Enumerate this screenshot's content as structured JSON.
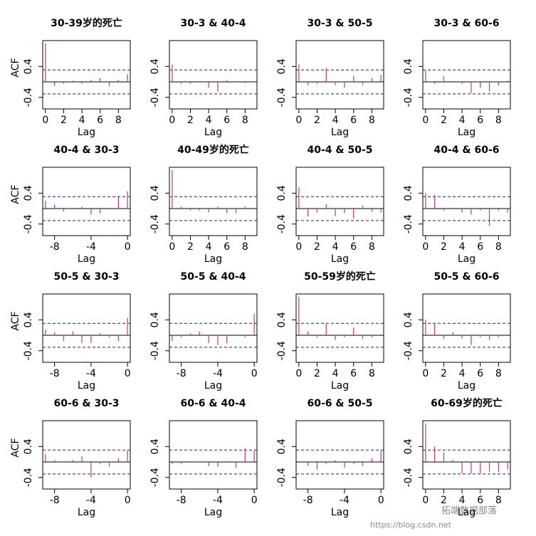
{
  "chart_data": [
    {
      "type": "acf",
      "title": "30-39岁的死亡",
      "ylabel": "ACF",
      "xlabel": "Lag",
      "x": [
        0,
        1,
        2,
        3,
        4,
        5,
        6,
        7,
        8,
        9
      ],
      "values": [
        1.0,
        -0.1,
        -0.05,
        0.03,
        -0.05,
        0.05,
        0.1,
        -0.12,
        0.05,
        0.2
      ],
      "xlim": [
        -0.3,
        9.3
      ],
      "ylim": [
        -0.7,
        1.07
      ],
      "xticks": [
        0,
        2,
        4,
        6,
        8
      ],
      "yticks": [
        -0.4,
        0.4
      ],
      "conf_limit": 0.31,
      "color": "#cc3366",
      "conf_color": "#1a1a8c"
    },
    {
      "type": "acf",
      "title": "30-3 & 40-4",
      "xlabel": "Lag",
      "x": [
        0,
        1,
        2,
        3,
        4,
        5,
        6,
        7,
        8,
        9
      ],
      "values": [
        0.45,
        -0.05,
        -0.05,
        0.02,
        -0.15,
        -0.25,
        0.05,
        0.02,
        -0.03,
        0.02
      ],
      "xlim": [
        -0.3,
        9.3
      ],
      "ylim": [
        -0.7,
        1.07
      ],
      "xticks": [
        0,
        2,
        4,
        6,
        8
      ],
      "yticks": [
        -0.4,
        0.4
      ],
      "conf_limit": 0.31,
      "color": "#cc3366",
      "conf_color": "#1a1a8c"
    },
    {
      "type": "acf",
      "title": "30-3 & 50-5",
      "xlabel": "Lag",
      "x": [
        0,
        1,
        2,
        3,
        4,
        5,
        6,
        7,
        8,
        9
      ],
      "values": [
        0.45,
        -0.08,
        -0.05,
        0.35,
        -0.08,
        -0.15,
        0.15,
        -0.08,
        0.1,
        0.18
      ],
      "xlim": [
        -0.3,
        9.3
      ],
      "ylim": [
        -0.7,
        1.07
      ],
      "xticks": [
        0,
        2,
        4,
        6,
        8
      ],
      "yticks": [
        -0.4,
        0.4
      ],
      "conf_limit": 0.31,
      "color": "#cc3366",
      "conf_color": "#1a1a8c"
    },
    {
      "type": "acf",
      "title": "30-3 & 60-6",
      "xlabel": "Lag",
      "x": [
        0,
        1,
        2,
        3,
        4,
        5,
        6,
        7,
        8,
        9
      ],
      "values": [
        0.3,
        -0.05,
        0.15,
        0.02,
        -0.05,
        -0.3,
        -0.15,
        -0.25,
        -0.1,
        0.03
      ],
      "xlim": [
        -0.3,
        9.3
      ],
      "ylim": [
        -0.7,
        1.07
      ],
      "xticks": [
        0,
        2,
        4,
        6,
        8
      ],
      "yticks": [
        -0.4,
        0.4
      ],
      "conf_limit": 0.31,
      "color": "#cc3366",
      "conf_color": "#1a1a8c"
    },
    {
      "type": "acf",
      "title": "40-4 & 30-3",
      "ylabel": "ACF",
      "xlabel": "Lag",
      "x": [
        -9,
        -8,
        -7,
        -6,
        -5,
        -4,
        -3,
        -2,
        -1,
        0
      ],
      "values": [
        0.2,
        0.1,
        -0.08,
        0.02,
        0.05,
        -0.15,
        -0.12,
        0.02,
        0.3,
        0.45
      ],
      "xlim": [
        -9.3,
        0.3
      ],
      "ylim": [
        -0.7,
        1.07
      ],
      "xticks": [
        -8,
        -4,
        0
      ],
      "yticks": [
        -0.4,
        0.4
      ],
      "conf_limit": 0.31,
      "color": "#cc3366",
      "conf_color": "#1a1a8c"
    },
    {
      "type": "acf",
      "title": "40-49岁的死亡",
      "xlabel": "Lag",
      "x": [
        0,
        1,
        2,
        3,
        4,
        5,
        6,
        7,
        8,
        9
      ],
      "values": [
        1.0,
        0.05,
        -0.05,
        -0.05,
        -0.1,
        0.05,
        -0.12,
        -0.12,
        0.05,
        0.02
      ],
      "xlim": [
        -0.3,
        9.3
      ],
      "ylim": [
        -0.7,
        1.07
      ],
      "xticks": [
        0,
        2,
        4,
        6,
        8
      ],
      "yticks": [
        -0.4,
        0.4
      ],
      "conf_limit": 0.31,
      "color": "#cc3366",
      "conf_color": "#1a1a8c"
    },
    {
      "type": "acf",
      "title": "40-4 & 50-5",
      "xlabel": "Lag",
      "x": [
        0,
        1,
        2,
        3,
        4,
        5,
        6,
        7,
        8,
        9
      ],
      "values": [
        0.55,
        -0.2,
        -0.1,
        0.12,
        -0.2,
        -0.12,
        -0.25,
        0.08,
        -0.08,
        -0.1
      ],
      "xlim": [
        -0.3,
        9.3
      ],
      "ylim": [
        -0.7,
        1.07
      ],
      "xticks": [
        0,
        2,
        4,
        6,
        8
      ],
      "yticks": [
        -0.4,
        0.4
      ],
      "conf_limit": 0.31,
      "color": "#cc3366",
      "conf_color": "#1a1a8c"
    },
    {
      "type": "acf",
      "title": "40-4 & 60-6",
      "xlabel": "Lag",
      "x": [
        0,
        1,
        2,
        3,
        4,
        5,
        6,
        7,
        8,
        9
      ],
      "values": [
        0.4,
        0.35,
        -0.05,
        0.02,
        -0.1,
        -0.15,
        -0.05,
        -0.45,
        -0.05,
        -0.1
      ],
      "xlim": [
        -0.3,
        9.3
      ],
      "ylim": [
        -0.7,
        1.07
      ],
      "xticks": [
        0,
        2,
        4,
        6,
        8
      ],
      "yticks": [
        -0.4,
        0.4
      ],
      "conf_limit": 0.31,
      "color": "#cc3366",
      "conf_color": "#1a1a8c"
    },
    {
      "type": "acf",
      "title": "50-5 & 30-3",
      "ylabel": "ACF",
      "xlabel": "Lag",
      "x": [
        -9,
        -8,
        -7,
        -6,
        -5,
        -4,
        -3,
        -2,
        -1,
        0
      ],
      "values": [
        0.15,
        0.08,
        -0.15,
        0.1,
        -0.2,
        -0.2,
        0.05,
        -0.05,
        -0.15,
        0.45
      ],
      "xlim": [
        -9.3,
        0.3
      ],
      "ylim": [
        -0.7,
        1.07
      ],
      "xticks": [
        -8,
        -4,
        0
      ],
      "yticks": [
        -0.4,
        0.4
      ],
      "conf_limit": 0.31,
      "color": "#cc3366",
      "conf_color": "#1a1a8c"
    },
    {
      "type": "acf",
      "title": "50-5 & 40-4",
      "xlabel": "Lag",
      "x": [
        -9,
        -8,
        -7,
        -6,
        -5,
        -4,
        -3,
        -2,
        -1,
        0
      ],
      "values": [
        -0.15,
        -0.05,
        0.05,
        0.1,
        -0.2,
        -0.25,
        -0.2,
        0.02,
        -0.05,
        0.55
      ],
      "xlim": [
        -9.3,
        0.3
      ],
      "ylim": [
        -0.7,
        1.07
      ],
      "xticks": [
        -8,
        -4,
        0
      ],
      "yticks": [
        -0.4,
        0.4
      ],
      "conf_limit": 0.31,
      "color": "#cc3366",
      "conf_color": "#1a1a8c"
    },
    {
      "type": "acf",
      "title": "50-59岁的死亡",
      "xlabel": "Lag",
      "x": [
        0,
        1,
        2,
        3,
        4,
        5,
        6,
        7,
        8,
        9
      ],
      "values": [
        1.0,
        0.1,
        -0.05,
        0.3,
        -0.12,
        -0.05,
        0.2,
        -0.1,
        -0.05,
        0.02
      ],
      "xlim": [
        -0.3,
        9.3
      ],
      "ylim": [
        -0.7,
        1.07
      ],
      "xticks": [
        0,
        2,
        4,
        6,
        8
      ],
      "yticks": [
        -0.4,
        0.4
      ],
      "conf_limit": 0.31,
      "color": "#cc3366",
      "conf_color": "#1a1a8c"
    },
    {
      "type": "acf",
      "title": "50-5 & 60-6",
      "xlabel": "Lag",
      "x": [
        0,
        1,
        2,
        3,
        4,
        5,
        6,
        7,
        8,
        9
      ],
      "values": [
        0.4,
        0.3,
        -0.1,
        0.08,
        -0.08,
        -0.25,
        -0.05,
        -0.12,
        -0.05,
        0.02
      ],
      "xlim": [
        -0.3,
        9.3
      ],
      "ylim": [
        -0.7,
        1.07
      ],
      "xticks": [
        0,
        2,
        4,
        6,
        8
      ],
      "yticks": [
        -0.4,
        0.4
      ],
      "conf_limit": 0.31,
      "color": "#cc3366",
      "conf_color": "#1a1a8c"
    },
    {
      "type": "acf",
      "title": "60-6 & 30-3",
      "ylabel": "ACF",
      "xlabel": "Lag",
      "x": [
        -9,
        -8,
        -7,
        -6,
        -5,
        -4,
        -3,
        -2,
        -1,
        0
      ],
      "values": [
        0.2,
        0.05,
        0.02,
        0.05,
        0.15,
        -0.4,
        -0.05,
        -0.12,
        0.1,
        0.3
      ],
      "xlim": [
        -9.3,
        0.3
      ],
      "ylim": [
        -0.7,
        1.07
      ],
      "xticks": [
        -8,
        -4,
        0
      ],
      "yticks": [
        -0.4,
        0.4
      ],
      "conf_limit": 0.31,
      "color": "#cc3366",
      "conf_color": "#1a1a8c"
    },
    {
      "type": "acf",
      "title": "60-6 & 40-4",
      "xlabel": "Lag",
      "x": [
        -9,
        -8,
        -7,
        -6,
        -5,
        -4,
        -3,
        -2,
        -1,
        0
      ],
      "values": [
        -0.05,
        -0.05,
        0.02,
        0.02,
        -0.1,
        -0.12,
        0.02,
        -0.15,
        0.35,
        0.3
      ],
      "xlim": [
        -9.3,
        0.3
      ],
      "ylim": [
        -0.7,
        1.07
      ],
      "xticks": [
        -8,
        -4,
        0
      ],
      "yticks": [
        -0.4,
        0.4
      ],
      "conf_limit": 0.31,
      "color": "#cc3366",
      "conf_color": "#1a1a8c"
    },
    {
      "type": "acf",
      "title": "60-6 & 50-5",
      "xlabel": "Lag",
      "x": [
        -9,
        -8,
        -7,
        -6,
        -5,
        -4,
        -3,
        -2,
        -1,
        0
      ],
      "values": [
        0.02,
        -0.1,
        -0.2,
        -0.05,
        0.05,
        -0.15,
        -0.05,
        -0.1,
        0.1,
        0.3
      ],
      "xlim": [
        -9.3,
        0.3
      ],
      "ylim": [
        -0.7,
        1.07
      ],
      "xticks": [
        -8,
        -4,
        0
      ],
      "yticks": [
        -0.4,
        0.4
      ],
      "conf_limit": 0.31,
      "color": "#cc3366",
      "conf_color": "#1a1a8c"
    },
    {
      "type": "acf",
      "title": "60-69岁的死亡",
      "xlabel": "Lag",
      "x": [
        0,
        1,
        2,
        3,
        4,
        5,
        6,
        7,
        8,
        9
      ],
      "values": [
        1.0,
        0.4,
        0.25,
        0.05,
        -0.3,
        -0.3,
        -0.3,
        -0.25,
        -0.25,
        -0.2
      ],
      "xlim": [
        -0.3,
        9.3
      ],
      "ylim": [
        -0.7,
        1.07
      ],
      "xticks": [
        0,
        2,
        4,
        6,
        8
      ],
      "yticks": [
        -0.4,
        0.4
      ],
      "conf_limit": 0.31,
      "color": "#cc3366",
      "conf_color": "#1a1a8c"
    }
  ],
  "watermark": {
    "brand": "拓端数据部落",
    "url": "https://blog.csdn.net"
  }
}
